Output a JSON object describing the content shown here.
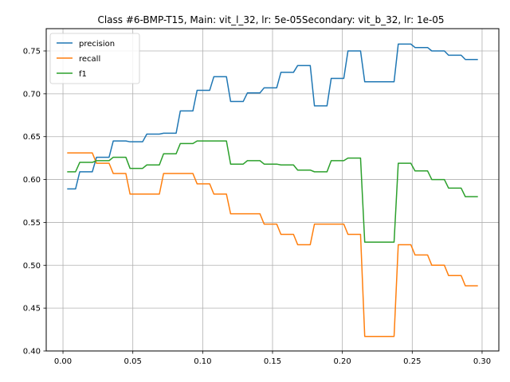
{
  "chart_data": {
    "type": "line",
    "title": "Class #6-BMP-T15, Main: vit_l_32, lr: 5e-05Secondary: vit_b_32, lr: 1e-05",
    "xlabel": "",
    "ylabel": "",
    "xlim": [
      -0.012,
      0.312
    ],
    "ylim": [
      0.4,
      0.776
    ],
    "grid": true,
    "legend_position": "upper-left",
    "x_ticks": [
      0.0,
      0.05,
      0.1,
      0.15,
      0.2,
      0.25,
      0.3
    ],
    "x_tick_labels": [
      "0.00",
      "0.05",
      "0.10",
      "0.15",
      "0.20",
      "0.25",
      "0.30"
    ],
    "y_ticks": [
      0.4,
      0.45,
      0.5,
      0.55,
      0.6,
      0.65,
      0.7,
      0.75
    ],
    "y_tick_labels": [
      "0.40",
      "0.45",
      "0.50",
      "0.55",
      "0.60",
      "0.65",
      "0.70",
      "0.75"
    ],
    "x": [
      0.003,
      0.009,
      0.012,
      0.018,
      0.021,
      0.024,
      0.033,
      0.036,
      0.045,
      0.048,
      0.057,
      0.06,
      0.069,
      0.072,
      0.081,
      0.084,
      0.093,
      0.096,
      0.105,
      0.108,
      0.117,
      0.12,
      0.129,
      0.132,
      0.141,
      0.144,
      0.153,
      0.156,
      0.165,
      0.168,
      0.177,
      0.18,
      0.189,
      0.192,
      0.201,
      0.204,
      0.213,
      0.216,
      0.225,
      0.228,
      0.237,
      0.24,
      0.249,
      0.252,
      0.261,
      0.264,
      0.273,
      0.276,
      0.285,
      0.288,
      0.297
    ],
    "series": [
      {
        "name": "precision",
        "color": "#1f77b4",
        "values": [
          0.589,
          0.589,
          0.609,
          0.609,
          0.609,
          0.626,
          0.626,
          0.645,
          0.645,
          0.644,
          0.644,
          0.653,
          0.653,
          0.654,
          0.654,
          0.68,
          0.68,
          0.704,
          0.704,
          0.72,
          0.72,
          0.691,
          0.691,
          0.701,
          0.701,
          0.707,
          0.707,
          0.725,
          0.725,
          0.733,
          0.733,
          0.686,
          0.686,
          0.718,
          0.718,
          0.75,
          0.75,
          0.714,
          0.714,
          0.714,
          0.714,
          0.758,
          0.758,
          0.754,
          0.754,
          0.75,
          0.75,
          0.745,
          0.745,
          0.74,
          0.74
        ]
      },
      {
        "name": "recall",
        "color": "#ff7f0e",
        "values": [
          0.631,
          0.631,
          0.631,
          0.631,
          0.631,
          0.619,
          0.619,
          0.607,
          0.607,
          0.583,
          0.583,
          0.583,
          0.583,
          0.607,
          0.607,
          0.607,
          0.607,
          0.595,
          0.595,
          0.583,
          0.583,
          0.56,
          0.56,
          0.56,
          0.56,
          0.548,
          0.548,
          0.536,
          0.536,
          0.524,
          0.524,
          0.548,
          0.548,
          0.548,
          0.548,
          0.536,
          0.536,
          0.417,
          0.417,
          0.417,
          0.417,
          0.524,
          0.524,
          0.512,
          0.512,
          0.5,
          0.5,
          0.488,
          0.488,
          0.476,
          0.476
        ]
      },
      {
        "name": "f1",
        "color": "#2ca02c",
        "values": [
          0.609,
          0.609,
          0.62,
          0.62,
          0.62,
          0.622,
          0.622,
          0.626,
          0.626,
          0.613,
          0.613,
          0.617,
          0.617,
          0.63,
          0.63,
          0.642,
          0.642,
          0.645,
          0.645,
          0.645,
          0.645,
          0.618,
          0.618,
          0.622,
          0.622,
          0.618,
          0.618,
          0.617,
          0.617,
          0.611,
          0.611,
          0.609,
          0.609,
          0.622,
          0.622,
          0.625,
          0.625,
          0.527,
          0.527,
          0.527,
          0.527,
          0.619,
          0.619,
          0.61,
          0.61,
          0.6,
          0.6,
          0.59,
          0.59,
          0.58,
          0.58
        ]
      }
    ]
  }
}
